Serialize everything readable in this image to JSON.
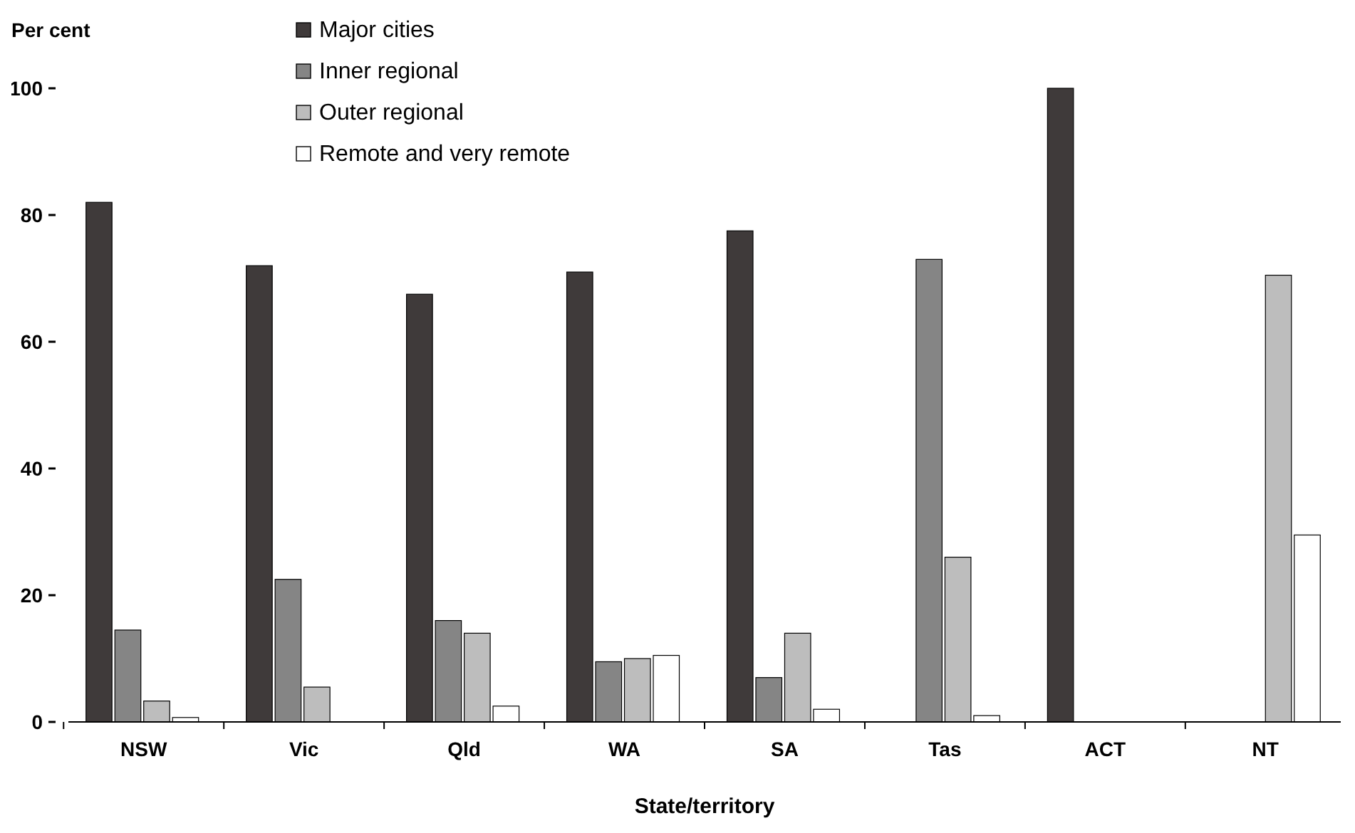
{
  "chart_data": {
    "type": "bar",
    "ylabel": "Per cent",
    "xlabel": "State/territory",
    "categories": [
      "NSW",
      "Vic",
      "Qld",
      "WA",
      "SA",
      "Tas",
      "ACT",
      "NT"
    ],
    "series": [
      {
        "name": "Major cities",
        "color": "#3f3a3a",
        "values": [
          82,
          72,
          67.5,
          71,
          77.5,
          0,
          100,
          0
        ]
      },
      {
        "name": "Inner regional",
        "color": "#858585",
        "values": [
          14.5,
          22.5,
          16,
          9.5,
          7,
          73,
          0,
          0
        ]
      },
      {
        "name": "Outer regional",
        "color": "#bdbdbd",
        "values": [
          3.3,
          5.5,
          14,
          10,
          14,
          26,
          0,
          70.5
        ]
      },
      {
        "name": "Remote and very remote",
        "color": "#ffffff",
        "values": [
          0.7,
          0,
          2.5,
          10.5,
          2,
          1,
          0,
          29.5
        ]
      }
    ],
    "ylim": [
      0,
      100
    ],
    "yticks": [
      0,
      20,
      40,
      60,
      80,
      100
    ],
    "grid": false,
    "legend": "top left"
  }
}
